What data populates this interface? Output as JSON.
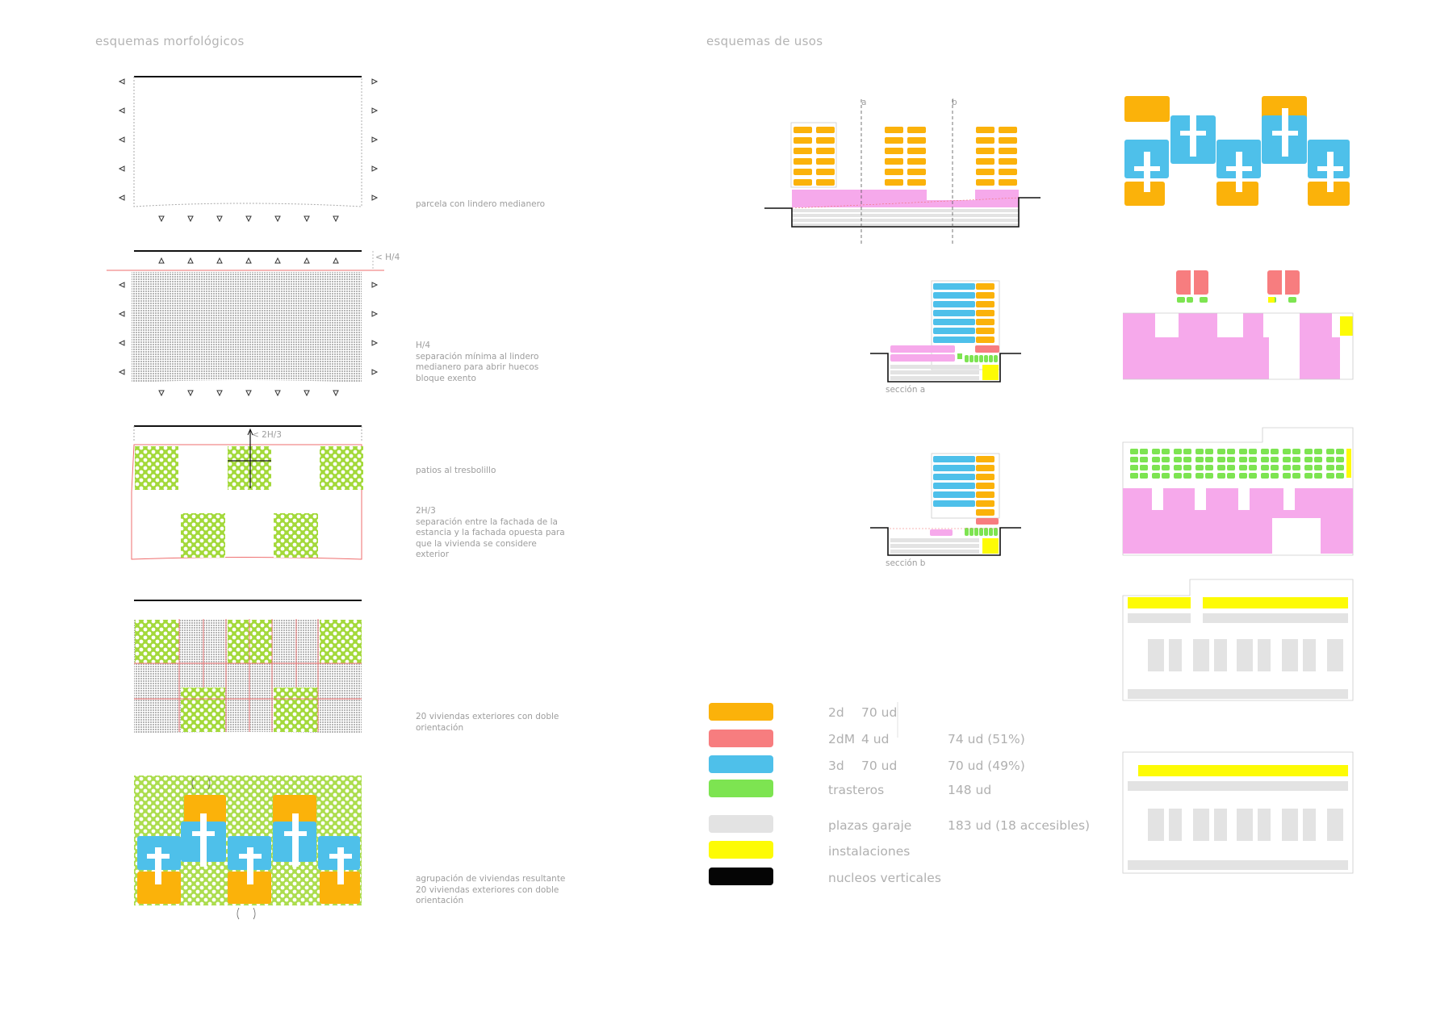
{
  "headers": {
    "morph": "esquemas morfológicos",
    "uses": "esquemas de usos"
  },
  "notes": {
    "n1": "parcela con lindero medianero",
    "n2": "H/4\nseparación mínima al lindero\nmedianero para abrir huecos\nbloque exento",
    "n3a": "patios al  tresbolillo",
    "n3b": "2H/3\nseparación entre la fachada de la\nestancia y la fachada opuesta para\nque la vivienda se considere\nexterior",
    "n4": "20 viviendas exteriores con doble\norientación",
    "n5": "agrupación de viviendas resultante\n20 viviendas exteriores con doble\norientación"
  },
  "dims": {
    "h4": "< H/4",
    "h23": "< 2H/3"
  },
  "sections": {
    "a": "a",
    "b": "b",
    "secA": "sección a",
    "secB": "sección b"
  },
  "colors": {
    "orange": "#fbb20a",
    "red": "#f77d7f",
    "blue": "#4ec0ea",
    "green": "#7de451",
    "grey": "#e3e3e3",
    "yellow": "#fdfb05",
    "black": "#050505",
    "pink": "#f6a9eb",
    "lime": "#a3d93a",
    "line": "#ef6e6e"
  },
  "legend": [
    {
      "swatch": "orange",
      "label": "2d",
      "count": "70 ud",
      "total": ""
    },
    {
      "swatch": "red",
      "label": "2dM",
      "count": "4 ud",
      "total": "74 ud (51%)"
    },
    {
      "swatch": "blue",
      "label": "3d",
      "count": "70 ud",
      "total": "70 ud (49%)"
    },
    {
      "swatch": "green",
      "label": "trasteros",
      "count": "",
      "total": "148 ud"
    },
    {
      "swatch": "grey",
      "label": "plazas garaje",
      "count": "",
      "total": "183 ud (18 accesibles)"
    },
    {
      "swatch": "yellow",
      "label": "instalaciones",
      "count": "",
      "total": ""
    },
    {
      "swatch": "black",
      "label": "nucleos verticales",
      "count": "",
      "total": ""
    }
  ]
}
